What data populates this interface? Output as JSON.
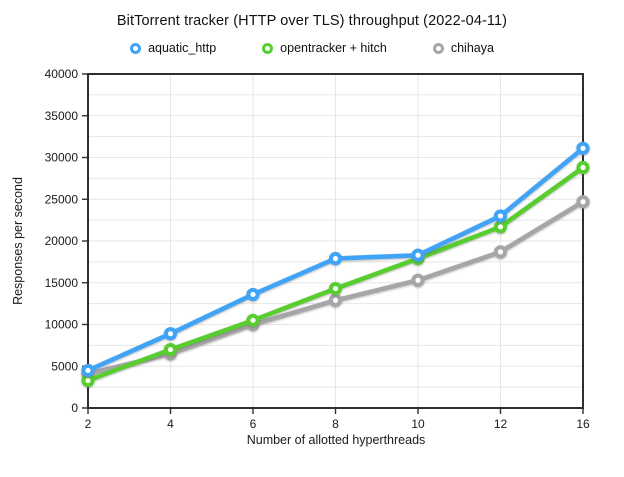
{
  "chart_data": {
    "type": "line",
    "title": "BitTorrent tracker (HTTP over TLS) throughput (2022-04-11)",
    "xlabel": "Number of allotted hyperthreads",
    "ylabel": "Responses per second",
    "categories": [
      "2",
      "4",
      "6",
      "8",
      "10",
      "12",
      "16"
    ],
    "x_values": [
      2,
      4,
      6,
      8,
      10,
      12,
      16
    ],
    "ylim": [
      0,
      40000
    ],
    "y_major_step": 5000,
    "y_minor_step": 2500,
    "y_tick_labels": [
      "0",
      "5000",
      "10000",
      "15000",
      "20000",
      "25000",
      "30000",
      "35000",
      "40000"
    ],
    "grid": true,
    "legend_position": "top",
    "marker_style": "ring",
    "frame_color": "#2f2f2f",
    "gridline_color": "#e6e6e6",
    "series": [
      {
        "name": "aquatic_http",
        "color": "#3fa3f7",
        "values": [
          4500,
          8900,
          13600,
          17900,
          18300,
          23000,
          31100
        ]
      },
      {
        "name": "opentracker + hitch",
        "color": "#57ce2e",
        "values": [
          3300,
          7000,
          10500,
          14300,
          17900,
          21700,
          28800
        ]
      },
      {
        "name": "chihaya",
        "color": "#a6a6a6",
        "values": [
          4100,
          6500,
          10000,
          12900,
          15300,
          18700,
          24700
        ]
      }
    ]
  }
}
